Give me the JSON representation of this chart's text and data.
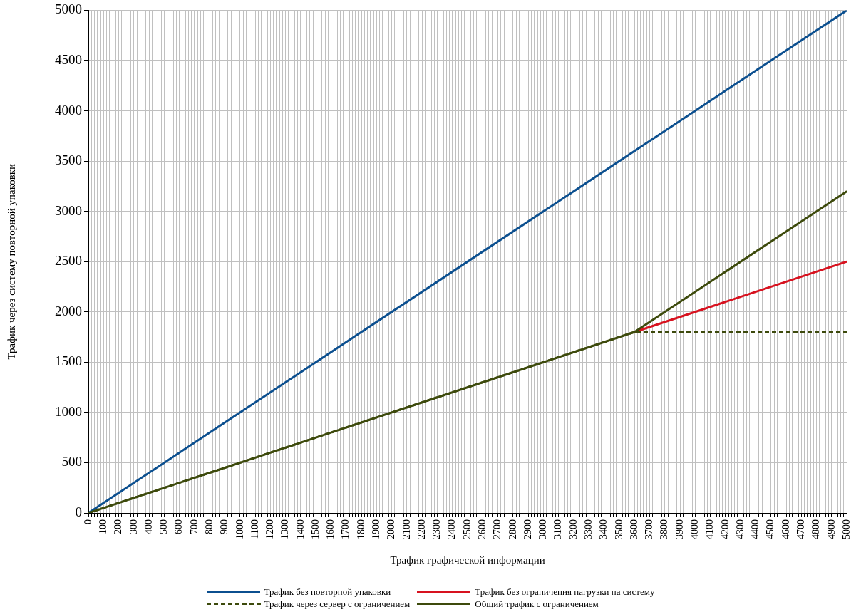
{
  "chart_data": {
    "type": "line",
    "xlabel": "Трафик графической информации",
    "ylabel": "Трафик через систему повторной упаковки",
    "xlim": [
      0,
      5000
    ],
    "ylim": [
      0,
      5000
    ],
    "yticks": [
      0,
      500,
      1000,
      1500,
      2000,
      2500,
      3000,
      3500,
      4000,
      4500,
      5000
    ],
    "xticks": [
      0,
      {
        "value": 20,
        "label": null
      },
      {
        "value": 40,
        "label": null
      },
      {
        "value": 60,
        "label": null
      },
      {
        "value": 80,
        "label": null
      },
      100,
      {
        "value": 120,
        "label": null
      },
      {
        "value": 140,
        "label": null
      },
      {
        "value": 160,
        "label": null
      },
      {
        "value": 180,
        "label": null
      },
      200,
      {
        "value": 220,
        "label": null
      },
      {
        "value": 240,
        "label": null
      },
      {
        "value": 260,
        "label": null
      },
      {
        "value": 280,
        "label": null
      },
      300,
      {
        "value": 320,
        "label": null
      },
      {
        "value": 340,
        "label": null
      },
      {
        "value": 360,
        "label": null
      },
      {
        "value": 380,
        "label": null
      },
      400,
      {
        "value": 420,
        "label": null
      },
      {
        "value": 440,
        "label": null
      },
      {
        "value": 460,
        "label": null
      },
      {
        "value": 480,
        "label": null
      },
      500,
      {
        "value": 520,
        "label": null
      },
      {
        "value": 540,
        "label": null
      },
      {
        "value": 560,
        "label": null
      },
      {
        "value": 580,
        "label": null
      },
      600,
      {
        "value": 620,
        "label": null
      },
      {
        "value": 640,
        "label": null
      },
      {
        "value": 660,
        "label": null
      },
      {
        "value": 680,
        "label": null
      },
      700,
      {
        "value": 720,
        "label": null
      },
      {
        "value": 740,
        "label": null
      },
      {
        "value": 760,
        "label": null
      },
      {
        "value": 780,
        "label": null
      },
      800,
      {
        "value": 820,
        "label": null
      },
      {
        "value": 840,
        "label": null
      },
      {
        "value": 860,
        "label": null
      },
      {
        "value": 880,
        "label": null
      },
      900,
      {
        "value": 920,
        "label": null
      },
      {
        "value": 940,
        "label": null
      },
      {
        "value": 960,
        "label": null
      },
      {
        "value": 980,
        "label": null
      },
      1000,
      {
        "value": 1020,
        "label": null
      },
      {
        "value": 1040,
        "label": null
      },
      {
        "value": 1060,
        "label": null
      },
      {
        "value": 1080,
        "label": null
      },
      1100,
      {
        "value": 1120,
        "label": null
      },
      {
        "value": 1140,
        "label": null
      },
      {
        "value": 1160,
        "label": null
      },
      {
        "value": 1180,
        "label": null
      },
      1200,
      {
        "value": 1220,
        "label": null
      },
      {
        "value": 1240,
        "label": null
      },
      {
        "value": 1260,
        "label": null
      },
      {
        "value": 1280,
        "label": null
      },
      1300,
      {
        "value": 1320,
        "label": null
      },
      {
        "value": 1340,
        "label": null
      },
      {
        "value": 1360,
        "label": null
      },
      {
        "value": 1380,
        "label": null
      },
      1400,
      {
        "value": 1420,
        "label": null
      },
      {
        "value": 1440,
        "label": null
      },
      {
        "value": 1460,
        "label": null
      },
      {
        "value": 1480,
        "label": null
      },
      1500,
      {
        "value": 1520,
        "label": null
      },
      {
        "value": 1540,
        "label": null
      },
      {
        "value": 1560,
        "label": null
      },
      {
        "value": 1580,
        "label": null
      },
      1600,
      {
        "value": 1620,
        "label": null
      },
      {
        "value": 1640,
        "label": null
      },
      {
        "value": 1660,
        "label": null
      },
      {
        "value": 1680,
        "label": null
      },
      1700,
      {
        "value": 1720,
        "label": null
      },
      {
        "value": 1740,
        "label": null
      },
      {
        "value": 1760,
        "label": null
      },
      {
        "value": 1780,
        "label": null
      },
      1800,
      {
        "value": 1820,
        "label": null
      },
      {
        "value": 1840,
        "label": null
      },
      {
        "value": 1860,
        "label": null
      },
      {
        "value": 1880,
        "label": null
      },
      1900,
      {
        "value": 1920,
        "label": null
      },
      {
        "value": 1940,
        "label": null
      },
      {
        "value": 1960,
        "label": null
      },
      {
        "value": 1980,
        "label": null
      },
      2000,
      {
        "value": 2020,
        "label": null
      },
      {
        "value": 2040,
        "label": null
      },
      {
        "value": 2060,
        "label": null
      },
      {
        "value": 2080,
        "label": null
      },
      2100,
      {
        "value": 2120,
        "label": null
      },
      {
        "value": 2140,
        "label": null
      },
      {
        "value": 2160,
        "label": null
      },
      {
        "value": 2180,
        "label": null
      },
      2200,
      {
        "value": 2220,
        "label": null
      },
      {
        "value": 2240,
        "label": null
      },
      {
        "value": 2260,
        "label": null
      },
      {
        "value": 2280,
        "label": null
      },
      2300,
      {
        "value": 2320,
        "label": null
      },
      {
        "value": 2340,
        "label": null
      },
      {
        "value": 2360,
        "label": null
      },
      {
        "value": 2380,
        "label": null
      },
      2400,
      {
        "value": 2420,
        "label": null
      },
      {
        "value": 2440,
        "label": null
      },
      {
        "value": 2460,
        "label": null
      },
      {
        "value": 2480,
        "label": null
      },
      2500,
      {
        "value": 2520,
        "label": null
      },
      {
        "value": 2540,
        "label": null
      },
      {
        "value": 2560,
        "label": null
      },
      {
        "value": 2580,
        "label": null
      },
      2600,
      {
        "value": 2620,
        "label": null
      },
      {
        "value": 2640,
        "label": null
      },
      {
        "value": 2660,
        "label": null
      },
      {
        "value": 2680,
        "label": null
      },
      2700,
      {
        "value": 2720,
        "label": null
      },
      {
        "value": 2740,
        "label": null
      },
      {
        "value": 2760,
        "label": null
      },
      {
        "value": 2780,
        "label": null
      },
      2800,
      {
        "value": 2820,
        "label": null
      },
      {
        "value": 2840,
        "label": null
      },
      {
        "value": 2860,
        "label": null
      },
      {
        "value": 2880,
        "label": null
      },
      2900,
      {
        "value": 2920,
        "label": null
      },
      {
        "value": 2940,
        "label": null
      },
      {
        "value": 2960,
        "label": null
      },
      {
        "value": 2980,
        "label": null
      },
      3000,
      {
        "value": 3020,
        "label": null
      },
      {
        "value": 3040,
        "label": null
      },
      {
        "value": 3060,
        "label": null
      },
      {
        "value": 3080,
        "label": null
      },
      3100,
      {
        "value": 3120,
        "label": null
      },
      {
        "value": 3140,
        "label": null
      },
      {
        "value": 3160,
        "label": null
      },
      {
        "value": 3180,
        "label": null
      },
      3200,
      {
        "value": 3220,
        "label": null
      },
      {
        "value": 3240,
        "label": null
      },
      {
        "value": 3260,
        "label": null
      },
      {
        "value": 3280,
        "label": null
      },
      3300,
      {
        "value": 3320,
        "label": null
      },
      {
        "value": 3340,
        "label": null
      },
      {
        "value": 3360,
        "label": null
      },
      {
        "value": 3380,
        "label": null
      },
      3400,
      {
        "value": 3420,
        "label": null
      },
      {
        "value": 3440,
        "label": null
      },
      {
        "value": 3460,
        "label": null
      },
      {
        "value": 3480,
        "label": null
      },
      3500,
      {
        "value": 3520,
        "label": null
      },
      {
        "value": 3540,
        "label": null
      },
      {
        "value": 3560,
        "label": null
      },
      {
        "value": 3580,
        "label": null
      },
      3600,
      {
        "value": 3620,
        "label": null
      },
      {
        "value": 3640,
        "label": null
      },
      {
        "value": 3660,
        "label": null
      },
      {
        "value": 3680,
        "label": null
      },
      3700,
      {
        "value": 3720,
        "label": null
      },
      {
        "value": 3740,
        "label": null
      },
      {
        "value": 3760,
        "label": null
      },
      {
        "value": 3780,
        "label": null
      },
      3800,
      {
        "value": 3820,
        "label": null
      },
      {
        "value": 3840,
        "label": null
      },
      {
        "value": 3860,
        "label": null
      },
      {
        "value": 3880,
        "label": null
      },
      3900,
      {
        "value": 3920,
        "label": null
      },
      {
        "value": 3940,
        "label": null
      },
      {
        "value": 3960,
        "label": null
      },
      {
        "value": 3980,
        "label": null
      },
      4000,
      {
        "value": 4020,
        "label": null
      },
      {
        "value": 4040,
        "label": null
      },
      {
        "value": 4060,
        "label": null
      },
      {
        "value": 4080,
        "label": null
      },
      4100,
      {
        "value": 4120,
        "label": null
      },
      {
        "value": 4140,
        "label": null
      },
      {
        "value": 4160,
        "label": null
      },
      {
        "value": 4180,
        "label": null
      },
      4200,
      {
        "value": 4220,
        "label": null
      },
      {
        "value": 4240,
        "label": null
      },
      {
        "value": 4260,
        "label": null
      },
      {
        "value": 4280,
        "label": null
      },
      4300,
      {
        "value": 4320,
        "label": null
      },
      {
        "value": 4340,
        "label": null
      },
      {
        "value": 4360,
        "label": null
      },
      {
        "value": 4380,
        "label": null
      },
      4400,
      {
        "value": 4420,
        "label": null
      },
      {
        "value": 4440,
        "label": null
      },
      {
        "value": 4460,
        "label": null
      },
      {
        "value": 4480,
        "label": null
      },
      4500,
      {
        "value": 4520,
        "label": null
      },
      {
        "value": 4540,
        "label": null
      },
      {
        "value": 4560,
        "label": null
      },
      {
        "value": 4580,
        "label": null
      },
      4600,
      {
        "value": 4620,
        "label": null
      },
      {
        "value": 4640,
        "label": null
      },
      {
        "value": 4660,
        "label": null
      },
      {
        "value": 4680,
        "label": null
      },
      4700,
      {
        "value": 4720,
        "label": null
      },
      {
        "value": 4740,
        "label": null
      },
      {
        "value": 4760,
        "label": null
      },
      {
        "value": 4780,
        "label": null
      },
      4800,
      {
        "value": 4820,
        "label": null
      },
      {
        "value": 4840,
        "label": null
      },
      {
        "value": 4860,
        "label": null
      },
      {
        "value": 4880,
        "label": null
      },
      4900,
      {
        "value": 4920,
        "label": null
      },
      {
        "value": 4940,
        "label": null
      },
      {
        "value": 4960,
        "label": null
      },
      {
        "value": 4980,
        "label": null
      },
      5000
    ],
    "grid": true,
    "legend": "bottom",
    "marker": "none",
    "series": [
      {
        "name": "Трафик без повторной упаковки",
        "color": "#0b4f8f",
        "x": [
          0,
          5000
        ],
        "values": [
          0,
          5000
        ]
      },
      {
        "name": "Трафик без ограничения нагрузки на систему",
        "color": "#d7121f",
        "x": [
          3600,
          5000
        ],
        "values": [
          1800,
          2500
        ]
      },
      {
        "name": "Трафик через сервер с ограничением",
        "color": "#3d4a0c",
        "line_style": "dashed",
        "x": [
          0,
          3600,
          5000
        ],
        "values": [
          0,
          1800,
          1800
        ]
      },
      {
        "name": "Общий трафик с ограничением",
        "color": "#3d4a0c",
        "x": [
          0,
          3600,
          5000
        ],
        "values": [
          0,
          1800,
          3200
        ]
      }
    ]
  }
}
